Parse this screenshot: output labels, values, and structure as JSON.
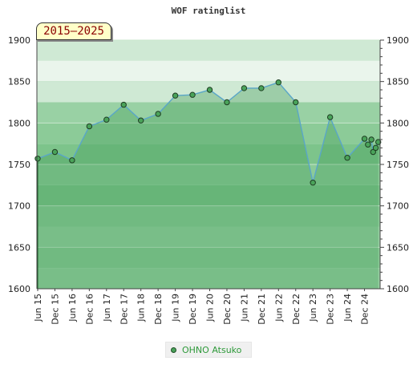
{
  "chart_data": {
    "type": "line",
    "title": "WOF ratinglist",
    "period_label": "2015–2025",
    "ylim": [
      1600,
      1900
    ],
    "yticks": [
      1600,
      1650,
      1700,
      1750,
      1800,
      1850,
      1900
    ],
    "xticks": [
      "Jun 15",
      "Dec 15",
      "Jun 16",
      "Dec 16",
      "Jun 17",
      "Dec 17",
      "Jun 18",
      "Dec 18",
      "Jun 19",
      "Dec 19",
      "Jun 20",
      "Dec 20",
      "Jun 21",
      "Dec 21",
      "Jun 22",
      "Dec 22",
      "Jun 23",
      "Dec 23",
      "Jun 24",
      "Dec 24"
    ],
    "grid": true,
    "legend_position": "bottom",
    "series": [
      {
        "name": "OHNO Atsuko",
        "color": "#4aa35a",
        "points": [
          {
            "x": 0,
            "y": 1757
          },
          {
            "x": 1,
            "y": 1765
          },
          {
            "x": 2,
            "y": 1755
          },
          {
            "x": 3,
            "y": 1796
          },
          {
            "x": 4,
            "y": 1804
          },
          {
            "x": 5,
            "y": 1822
          },
          {
            "x": 6,
            "y": 1803
          },
          {
            "x": 7,
            "y": 1811
          },
          {
            "x": 8,
            "y": 1833
          },
          {
            "x": 9,
            "y": 1834
          },
          {
            "x": 10,
            "y": 1840
          },
          {
            "x": 11,
            "y": 1825
          },
          {
            "x": 12,
            "y": 1842
          },
          {
            "x": 13,
            "y": 1842
          },
          {
            "x": 14,
            "y": 1849
          },
          {
            "x": 15,
            "y": 1825
          },
          {
            "x": 16,
            "y": 1728
          },
          {
            "x": 17,
            "y": 1807
          },
          {
            "x": 18,
            "y": 1758
          },
          {
            "x": 19,
            "y": 1781
          },
          {
            "x": 19.2,
            "y": 1774
          },
          {
            "x": 19.4,
            "y": 1780
          },
          {
            "x": 19.5,
            "y": 1765
          },
          {
            "x": 19.65,
            "y": 1770
          },
          {
            "x": 19.8,
            "y": 1777
          }
        ]
      }
    ]
  }
}
